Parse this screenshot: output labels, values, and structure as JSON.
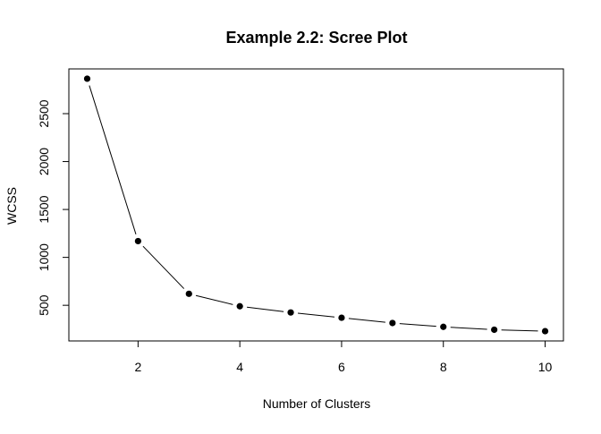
{
  "chart_data": {
    "type": "line",
    "title": "Example 2.2: Scree Plot",
    "xlabel": "Number of Clusters",
    "ylabel": "WCSS",
    "x": [
      1,
      2,
      3,
      4,
      5,
      6,
      7,
      8,
      9,
      10
    ],
    "series": [
      {
        "values": [
          2865,
          1170,
          620,
          490,
          425,
          370,
          315,
          275,
          245,
          230
        ]
      }
    ],
    "xlim": [
      0.64,
      10.36
    ],
    "ylim": [
      128,
      2967
    ],
    "x_ticks": [
      2,
      4,
      6,
      8,
      10
    ],
    "y_ticks": [
      500,
      1000,
      1500,
      2000,
      2500
    ],
    "grid": false,
    "legend": "none",
    "marker": "filled-circle",
    "line_color": "#000000",
    "point_color": "#000000"
  }
}
